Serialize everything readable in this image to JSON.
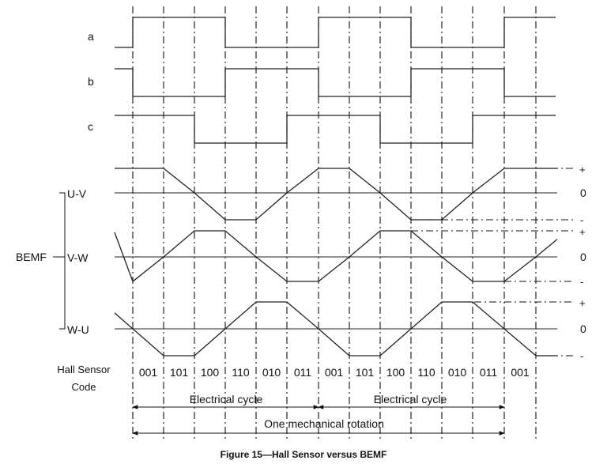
{
  "signals": [
    {
      "label": "a",
      "states": [
        0,
        1,
        1,
        1,
        0,
        0,
        0,
        1,
        1,
        1,
        0,
        0,
        0,
        1
      ]
    },
    {
      "label": "b",
      "states": [
        1,
        0,
        0,
        0,
        1,
        1,
        1,
        0,
        0,
        0,
        1,
        1,
        1,
        0
      ]
    },
    {
      "label": "c",
      "states": [
        1,
        1,
        1,
        0,
        0,
        0,
        1,
        1,
        1,
        0,
        0,
        0,
        1,
        1
      ]
    }
  ],
  "bemf": {
    "group_label": "BEMF",
    "traces": [
      {
        "label": "U-V",
        "values": [
          1,
          1,
          0,
          -1,
          -1,
          0,
          1,
          1,
          0,
          -1,
          -1,
          0,
          1,
          1
        ]
      },
      {
        "label": "V-W",
        "values": [
          -1,
          0,
          1,
          1,
          0,
          -1,
          -1,
          0,
          1,
          1,
          0,
          -1,
          -1,
          0
        ]
      },
      {
        "label": "W-U",
        "values": [
          0,
          -1,
          -1,
          0,
          1,
          1,
          0,
          -1,
          -1,
          0,
          1,
          1,
          0,
          -1
        ]
      }
    ],
    "level_labels": {
      "plus": "+",
      "zero": "0",
      "minus": "-"
    }
  },
  "hall_label_line1": "Hall Sensor",
  "hall_label_line2": "Code",
  "hall_codes": [
    "001",
    "101",
    "100",
    "110",
    "010",
    "011",
    "001",
    "101",
    "100",
    "110",
    "010",
    "011",
    "001"
  ],
  "cycle_labels": [
    "Electrical cycle",
    "Electrical cycle"
  ],
  "rotation_label": "One mechanical rotation",
  "caption": "Figure 15—Hall Sensor versus BEMF"
}
